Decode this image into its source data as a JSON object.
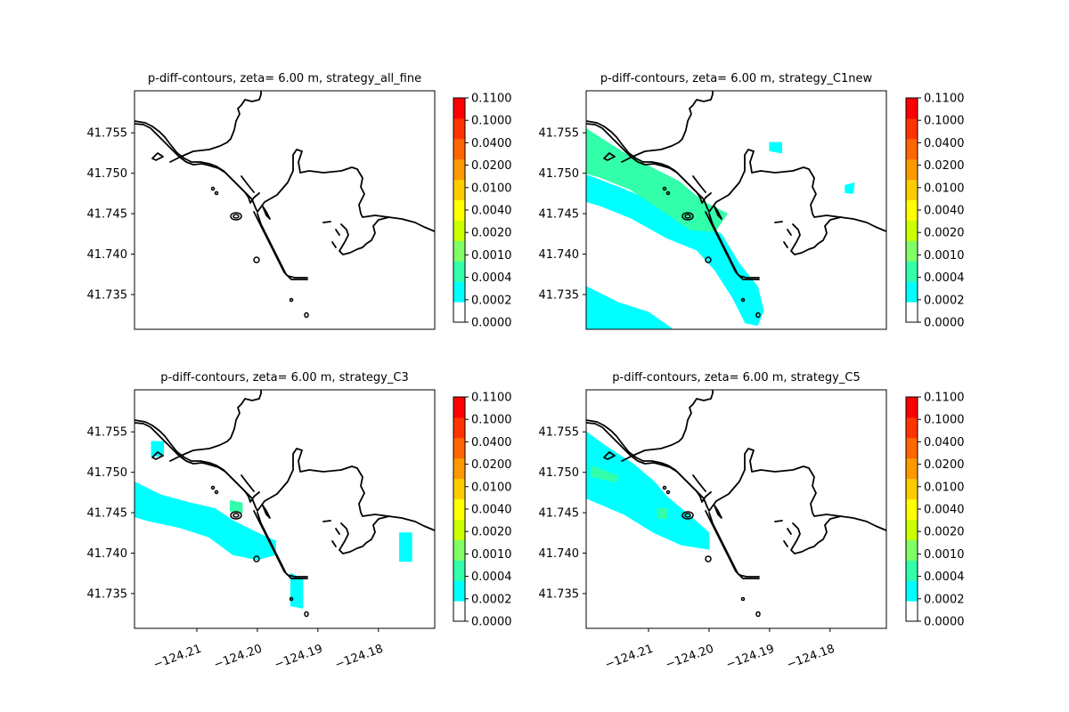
{
  "chart_data": [
    {
      "type": "contour",
      "title": "p-diff-contours, zeta= 6.00 m, strategy_all_fine",
      "xlabel": "",
      "ylabel": "",
      "xlim": [
        -124.2203,
        -124.1707
      ],
      "ylim": [
        41.7307,
        41.7602
      ],
      "xticks": [],
      "yticks": [
        {
          "value": 41.735,
          "label": "41.735"
        },
        {
          "value": 41.74,
          "label": "41.740"
        },
        {
          "value": 41.745,
          "label": "41.745"
        },
        {
          "value": 41.75,
          "label": "41.750"
        },
        {
          "value": 41.755,
          "label": "41.755"
        }
      ],
      "grid": false,
      "filled_regions": []
    },
    {
      "type": "contour",
      "title": "p-diff-contours, zeta= 6.00 m, strategy_C1new",
      "xlabel": "",
      "ylabel": "",
      "xlim": [
        -124.2203,
        -124.1707
      ],
      "ylim": [
        41.7307,
        41.7602
      ],
      "xticks": [],
      "yticks": [
        {
          "value": 41.735,
          "label": "41.735"
        },
        {
          "value": 41.74,
          "label": "41.740"
        },
        {
          "value": 41.745,
          "label": "41.745"
        },
        {
          "value": 41.75,
          "label": "41.750"
        },
        {
          "value": 41.755,
          "label": "41.755"
        }
      ],
      "grid": false,
      "filled_regions": [
        {
          "level": "0.0002-0.0004",
          "color": "#00ffff",
          "points": [
            [
              -124.2203,
              41.7498
            ],
            [
              -124.214,
              41.748
            ],
            [
              -124.208,
              41.746
            ],
            [
              -124.203,
              41.744
            ],
            [
              -124.198,
              41.7425
            ],
            [
              -124.195,
              41.7388
            ],
            [
              -124.192,
              41.736
            ],
            [
              -124.191,
              41.733
            ],
            [
              -124.192,
              41.7312
            ],
            [
              -124.194,
              41.7315
            ],
            [
              -124.196,
              41.7345
            ],
            [
              -124.199,
              41.738
            ],
            [
              -124.202,
              41.7405
            ],
            [
              -124.207,
              41.742
            ],
            [
              -124.213,
              41.7445
            ],
            [
              -124.218,
              41.746
            ],
            [
              -124.2203,
              41.7465
            ]
          ]
        },
        {
          "level": "0.0002-0.0004",
          "color": "#00ffff",
          "points": [
            [
              -124.2203,
              41.736
            ],
            [
              -124.215,
              41.734
            ],
            [
              -124.21,
              41.7328
            ],
            [
              -124.206,
              41.7307
            ],
            [
              -124.2203,
              41.7307
            ]
          ]
        },
        {
          "level": "0.0004-0.0010",
          "color": "#33ffaa",
          "points": [
            [
              -124.2203,
              41.7555
            ],
            [
              -124.214,
              41.7525
            ],
            [
              -124.209,
              41.7505
            ],
            [
              -124.205,
              41.749
            ],
            [
              -124.201,
              41.7465
            ],
            [
              -124.197,
              41.745
            ],
            [
              -124.199,
              41.7428
            ],
            [
              -124.203,
              41.743
            ],
            [
              -124.208,
              41.7455
            ],
            [
              -124.213,
              41.748
            ],
            [
              -124.218,
              41.7495
            ],
            [
              -124.2203,
              41.75
            ]
          ]
        },
        {
          "level": "0.0002-0.0004",
          "color": "#00ffff",
          "points": [
            [
              -124.19,
              41.7538
            ],
            [
              -124.188,
              41.7538
            ],
            [
              -124.188,
              41.7525
            ],
            [
              -124.19,
              41.7528
            ]
          ]
        },
        {
          "level": "0.0002-0.0004",
          "color": "#00ffff",
          "points": [
            [
              -124.1775,
              41.7485
            ],
            [
              -124.176,
              41.7488
            ],
            [
              -124.1762,
              41.7475
            ],
            [
              -124.1775,
              41.7476
            ]
          ]
        }
      ]
    },
    {
      "type": "contour",
      "title": "p-diff-contours, zeta= 6.00 m, strategy_C3",
      "xlabel": "",
      "ylabel": "",
      "xlim": [
        -124.2203,
        -124.1707
      ],
      "ylim": [
        41.7307,
        41.7602
      ],
      "xticks": [
        {
          "value": -124.21,
          "label": "−124.21"
        },
        {
          "value": -124.2,
          "label": "−124.20"
        },
        {
          "value": -124.19,
          "label": "−124.19"
        },
        {
          "value": -124.18,
          "label": "−124.18"
        }
      ],
      "yticks": [
        {
          "value": 41.735,
          "label": "41.735"
        },
        {
          "value": 41.74,
          "label": "41.740"
        },
        {
          "value": 41.745,
          "label": "41.745"
        },
        {
          "value": 41.75,
          "label": "41.750"
        },
        {
          "value": 41.755,
          "label": "41.755"
        }
      ],
      "grid": false,
      "filled_regions": [
        {
          "level": "0.0002-0.0004",
          "color": "#00ffff",
          "points": [
            [
              -124.2203,
              41.7488
            ],
            [
              -124.216,
              41.7472
            ],
            [
              -124.211,
              41.7462
            ],
            [
              -124.207,
              41.7455
            ],
            [
              -124.204,
              41.744
            ],
            [
              -124.2,
              41.7425
            ],
            [
              -124.197,
              41.7415
            ],
            [
              -124.197,
              41.7398
            ],
            [
              -124.2,
              41.7392
            ],
            [
              -124.204,
              41.7398
            ],
            [
              -124.208,
              41.742
            ],
            [
              -124.213,
              41.7432
            ],
            [
              -124.218,
              41.744
            ],
            [
              -124.2203,
              41.7445
            ]
          ]
        },
        {
          "level": "0.0002-0.0004",
          "color": "#00ffff",
          "points": [
            [
              -124.1945,
              41.7375
            ],
            [
              -124.1925,
              41.7368
            ],
            [
              -124.1925,
              41.7332
            ],
            [
              -124.1945,
              41.7335
            ]
          ]
        },
        {
          "level": "0.0002-0.0004",
          "color": "#00ffff",
          "points": [
            [
              -124.1765,
              41.7425
            ],
            [
              -124.1745,
              41.7425
            ],
            [
              -124.1745,
              41.739
            ],
            [
              -124.1765,
              41.739
            ]
          ]
        },
        {
          "level": "0.0004-0.0010",
          "color": "#33ffaa",
          "points": [
            [
              -124.2045,
              41.7465
            ],
            [
              -124.2025,
              41.7462
            ],
            [
              -124.2025,
              41.745
            ],
            [
              -124.2045,
              41.7452
            ]
          ]
        },
        {
          "level": "0.0002-0.0004",
          "color": "#00ffff",
          "points": [
            [
              -124.2175,
              41.7538
            ],
            [
              -124.2155,
              41.7538
            ],
            [
              -124.2155,
              41.752
            ],
            [
              -124.2175,
              41.752
            ]
          ]
        }
      ]
    },
    {
      "type": "contour",
      "title": "p-diff-contours, zeta= 6.00 m, strategy_C5",
      "xlabel": "",
      "ylabel": "",
      "xlim": [
        -124.2203,
        -124.1707
      ],
      "ylim": [
        41.7307,
        41.7602
      ],
      "xticks": [
        {
          "value": -124.21,
          "label": "−124.21"
        },
        {
          "value": -124.2,
          "label": "−124.20"
        },
        {
          "value": -124.19,
          "label": "−124.19"
        },
        {
          "value": -124.18,
          "label": "−124.18"
        }
      ],
      "yticks": [
        {
          "value": 41.735,
          "label": "41.735"
        },
        {
          "value": 41.74,
          "label": "41.740"
        },
        {
          "value": 41.745,
          "label": "41.745"
        },
        {
          "value": 41.75,
          "label": "41.750"
        },
        {
          "value": 41.755,
          "label": "41.755"
        }
      ],
      "grid": false,
      "filled_regions": [
        {
          "level": "0.0002-0.0004",
          "color": "#00ffff",
          "points": [
            [
              -124.2203,
              41.755
            ],
            [
              -124.217,
              41.7532
            ],
            [
              -124.2125,
              41.751
            ],
            [
              -124.209,
              41.7488
            ],
            [
              -124.207,
              41.747
            ],
            [
              -124.203,
              41.7445
            ],
            [
              -124.2,
              41.7425
            ],
            [
              -124.2,
              41.7405
            ],
            [
              -124.2045,
              41.741
            ],
            [
              -124.209,
              41.7425
            ],
            [
              -124.214,
              41.7448
            ],
            [
              -124.2203,
              41.7468
            ]
          ]
        },
        {
          "level": "0.0004-0.0010",
          "color": "#33ffaa",
          "points": [
            [
              -124.2195,
              41.7508
            ],
            [
              -124.215,
              41.7495
            ],
            [
              -124.2155,
              41.7488
            ],
            [
              -124.2195,
              41.7495
            ]
          ]
        },
        {
          "level": "0.0004-0.0010",
          "color": "#33ffaa",
          "points": [
            [
              -124.2085,
              41.7455
            ],
            [
              -124.207,
              41.7455
            ],
            [
              -124.207,
              41.7443
            ],
            [
              -124.2085,
              41.7443
            ]
          ]
        }
      ]
    }
  ],
  "colorbar": {
    "colors": [
      "#ffffff",
      "#00ffff",
      "#33ffaa",
      "#80ff66",
      "#ccff00",
      "#ffff00",
      "#ffcc00",
      "#ff9900",
      "#ff6600",
      "#ff3300",
      "#ff0000"
    ],
    "tick_labels": [
      "0.0000",
      "0.0002",
      "0.0004",
      "0.0010",
      "0.0020",
      "0.0040",
      "0.0100",
      "0.0200",
      "0.0400",
      "0.1000",
      "0.1100"
    ]
  }
}
